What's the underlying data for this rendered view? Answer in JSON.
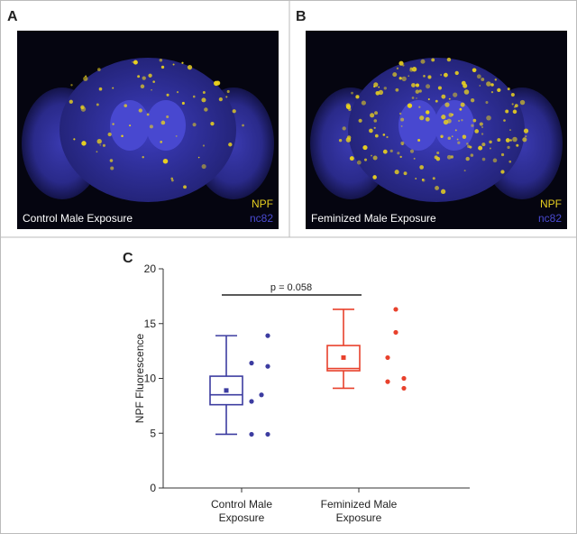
{
  "panels": [
    {
      "label": "A",
      "caption": "Control Male Exposure",
      "legend": [
        "NPF",
        "nc82"
      ]
    },
    {
      "label": "B",
      "caption": "Feminized Male Exposure",
      "legend": [
        "NPF",
        "nc82"
      ]
    }
  ],
  "chart_data": {
    "type": "box",
    "label": "C",
    "y_label": "NPF Fluorescence",
    "categories": [
      "Control Male Exposure",
      "Feminized Male Exposure"
    ],
    "boxes": [
      {
        "color": "#3c3ca0",
        "whisker_low": 4.9,
        "q1": 7.6,
        "median": 8.5,
        "q3": 10.2,
        "whisker_high": 13.9,
        "mean": 8.9,
        "points": [
          13.9,
          11.4,
          11.1,
          8.5,
          7.9,
          4.9,
          4.9
        ]
      },
      {
        "color": "#e8412c",
        "whisker_low": 9.1,
        "q1": 10.7,
        "median": 10.9,
        "q3": 13.0,
        "whisker_high": 16.3,
        "mean": 11.9,
        "points": [
          16.3,
          14.2,
          11.9,
          10.0,
          9.7,
          9.1
        ]
      }
    ],
    "annotation": "p = 0.058",
    "ylim": [
      0,
      20
    ],
    "yticks": [
      0,
      5,
      10,
      15,
      20
    ]
  }
}
